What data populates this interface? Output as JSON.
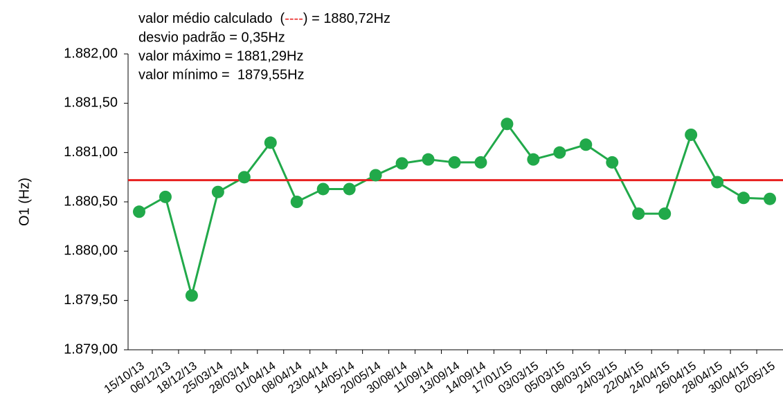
{
  "chart_data": {
    "type": "line",
    "annotations": [
      [
        "valor médio calculado  (",
        "----",
        ") = 1880,72Hz"
      ],
      "desvio padrão = 0,35Hz",
      "valor máximo = 1881,29Hz",
      "valor mínimo =  1879,55Hz"
    ],
    "ylabel": "O1 (Hz)",
    "categories": [
      "15/10/13",
      "06/12/13",
      "18/12/13",
      "25/03/14",
      "28/03/14",
      "01/04/14",
      "08/04/14",
      "23/04/14",
      "14/05/14",
      "20/05/14",
      "30/08/14",
      "11/09/14",
      "13/09/14",
      "14/09/14",
      "17/01/15",
      "03/03/15",
      "05/03/15",
      "08/03/15",
      "24/03/15",
      "22/04/15",
      "24/04/15",
      "26/04/15",
      "28/04/15",
      "30/04/15",
      "02/05/15"
    ],
    "series": [
      {
        "color": "#21a94a",
        "values": [
          1880.4,
          1880.55,
          1879.55,
          1880.6,
          1880.75,
          1881.1,
          1880.5,
          1880.63,
          1880.63,
          1880.77,
          1880.89,
          1880.93,
          1880.9,
          1880.9,
          1881.29,
          1880.93,
          1881.0,
          1881.08,
          1880.9,
          1880.38,
          1880.38,
          1881.18,
          1880.7,
          1880.54,
          1880.53
        ]
      }
    ],
    "mean_line": {
      "value": 1880.72,
      "color": "#e8201f"
    },
    "ylim": [
      1879.0,
      1882.0
    ],
    "yticks": [
      {
        "value": 1879.0,
        "label": "1.879,00"
      },
      {
        "value": 1879.5,
        "label": "1.879,50"
      },
      {
        "value": 1880.0,
        "label": "1.880,00"
      },
      {
        "value": 1880.5,
        "label": "1.880,50"
      },
      {
        "value": 1881.0,
        "label": "1.881,00"
      },
      {
        "value": 1881.5,
        "label": "1.881,50"
      },
      {
        "value": 1882.0,
        "label": "1.882,00"
      }
    ],
    "grid": false
  }
}
